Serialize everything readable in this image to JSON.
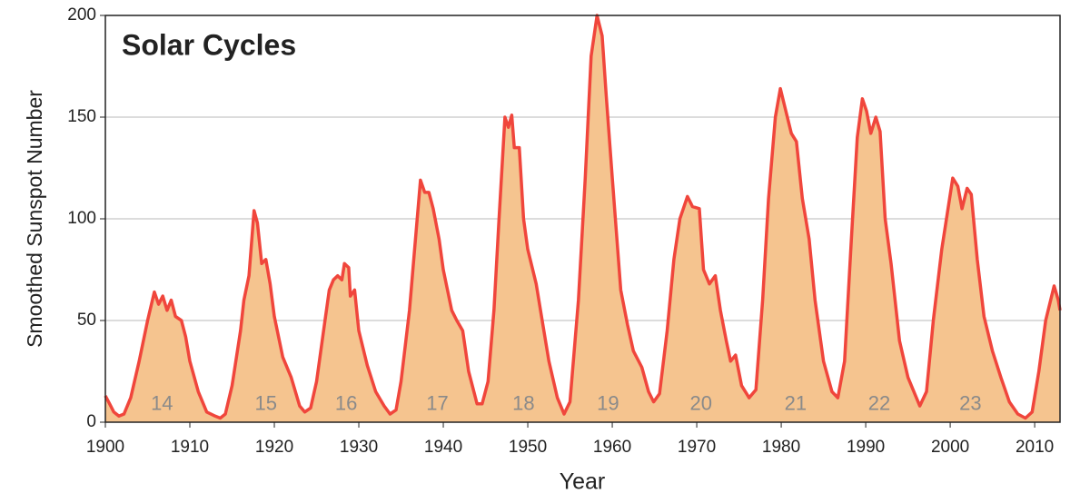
{
  "chart_data": {
    "type": "area",
    "title": "Solar Cycles",
    "x_label": "Year",
    "y_label": "Smoothed Sunspot Number",
    "xlim": [
      1900,
      2013
    ],
    "ylim": [
      0,
      200
    ],
    "xticks": [
      1900,
      1910,
      1920,
      1930,
      1940,
      1950,
      1960,
      1970,
      1980,
      1990,
      2000,
      2010
    ],
    "yticks": [
      0,
      50,
      100,
      150,
      200
    ],
    "grid": true,
    "line_color": "#f0463c",
    "fill_color": "#f5c48f",
    "x": [
      1900,
      1900.5,
      1901,
      1901.6,
      1902.2,
      1903,
      1904,
      1905,
      1905.8,
      1906.3,
      1906.8,
      1907.3,
      1907.8,
      1908.3,
      1909,
      1909.5,
      1910,
      1911,
      1912,
      1913,
      1913.6,
      1914.2,
      1915,
      1916,
      1916.4,
      1917,
      1917.6,
      1918,
      1918.5,
      1919,
      1919.5,
      1920,
      1921,
      1922,
      1923,
      1923.6,
      1924.3,
      1925,
      1926,
      1926.5,
      1927,
      1927.5,
      1928,
      1928.3,
      1928.8,
      1929,
      1929.5,
      1930,
      1931,
      1932,
      1933,
      1933.7,
      1934.4,
      1935,
      1936,
      1936.5,
      1937.3,
      1937.8,
      1938.3,
      1938.8,
      1939.5,
      1940,
      1941,
      1941.6,
      1942.3,
      1943,
      1944,
      1944.6,
      1945.3,
      1946,
      1946.6,
      1947.3,
      1947.7,
      1948.1,
      1948.4,
      1949,
      1949.5,
      1950,
      1951,
      1951.7,
      1952.5,
      1953.5,
      1954.3,
      1955,
      1956,
      1956.8,
      1957.5,
      1958.2,
      1958.8,
      1959.3,
      1960,
      1961,
      1961.8,
      1962.5,
      1963.5,
      1964.3,
      1964.9,
      1965.6,
      1966.5,
      1967.3,
      1968,
      1968.9,
      1969.5,
      1970.3,
      1970.8,
      1971.5,
      1972.2,
      1972.8,
      1973.5,
      1974,
      1974.6,
      1975.3,
      1976.2,
      1977,
      1977.8,
      1978.5,
      1979.3,
      1979.9,
      1980.6,
      1981.2,
      1981.8,
      1982.5,
      1983.3,
      1984,
      1985,
      1986,
      1986.7,
      1987.5,
      1988.3,
      1989,
      1989.6,
      1990.1,
      1990.6,
      1991.2,
      1991.7,
      1992.3,
      1993,
      1994,
      1995,
      1996.4,
      1997.2,
      1998,
      1999,
      2000.3,
      2000.9,
      2001.4,
      2002,
      2002.5,
      2003.2,
      2004,
      2005,
      2006,
      2007,
      2008,
      2008.9,
      2009.7,
      2010.5,
      2011.3,
      2012.3,
      2012.8,
      2013
    ],
    "values": [
      13,
      9,
      5,
      3,
      4,
      12,
      30,
      50,
      64,
      58,
      62,
      55,
      60,
      52,
      50,
      42,
      30,
      15,
      5,
      3,
      2,
      4,
      18,
      45,
      60,
      72,
      104,
      98,
      78,
      80,
      68,
      52,
      32,
      22,
      8,
      5,
      7,
      20,
      50,
      65,
      70,
      72,
      70,
      78,
      76,
      62,
      65,
      45,
      28,
      15,
      8,
      4,
      6,
      20,
      55,
      80,
      119,
      113,
      113,
      105,
      90,
      75,
      55,
      50,
      45,
      25,
      9,
      9,
      20,
      55,
      100,
      150,
      145,
      151,
      135,
      135,
      100,
      85,
      68,
      50,
      30,
      12,
      4,
      10,
      60,
      120,
      180,
      200,
      190,
      160,
      120,
      65,
      48,
      35,
      27,
      15,
      10,
      14,
      45,
      80,
      100,
      111,
      106,
      105,
      75,
      68,
      72,
      55,
      40,
      30,
      33,
      18,
      12,
      16,
      60,
      110,
      150,
      164,
      152,
      142,
      138,
      110,
      90,
      60,
      30,
      15,
      12,
      30,
      90,
      140,
      159,
      153,
      142,
      150,
      143,
      100,
      78,
      40,
      22,
      8,
      15,
      50,
      85,
      120,
      116,
      105,
      115,
      112,
      80,
      52,
      35,
      22,
      10,
      4,
      2,
      5,
      25,
      50,
      67,
      60,
      55
    ],
    "annotations": [
      {
        "text": "14",
        "x": 1906.7,
        "y": 6
      },
      {
        "text": "15",
        "x": 1919,
        "y": 6
      },
      {
        "text": "16",
        "x": 1928.5,
        "y": 6
      },
      {
        "text": "17",
        "x": 1939.3,
        "y": 6
      },
      {
        "text": "18",
        "x": 1949.5,
        "y": 6
      },
      {
        "text": "19",
        "x": 1959.5,
        "y": 6
      },
      {
        "text": "20",
        "x": 1970.5,
        "y": 6
      },
      {
        "text": "21",
        "x": 1981.7,
        "y": 6
      },
      {
        "text": "22",
        "x": 1991.6,
        "y": 6
      },
      {
        "text": "23",
        "x": 2002.4,
        "y": 6
      }
    ]
  }
}
